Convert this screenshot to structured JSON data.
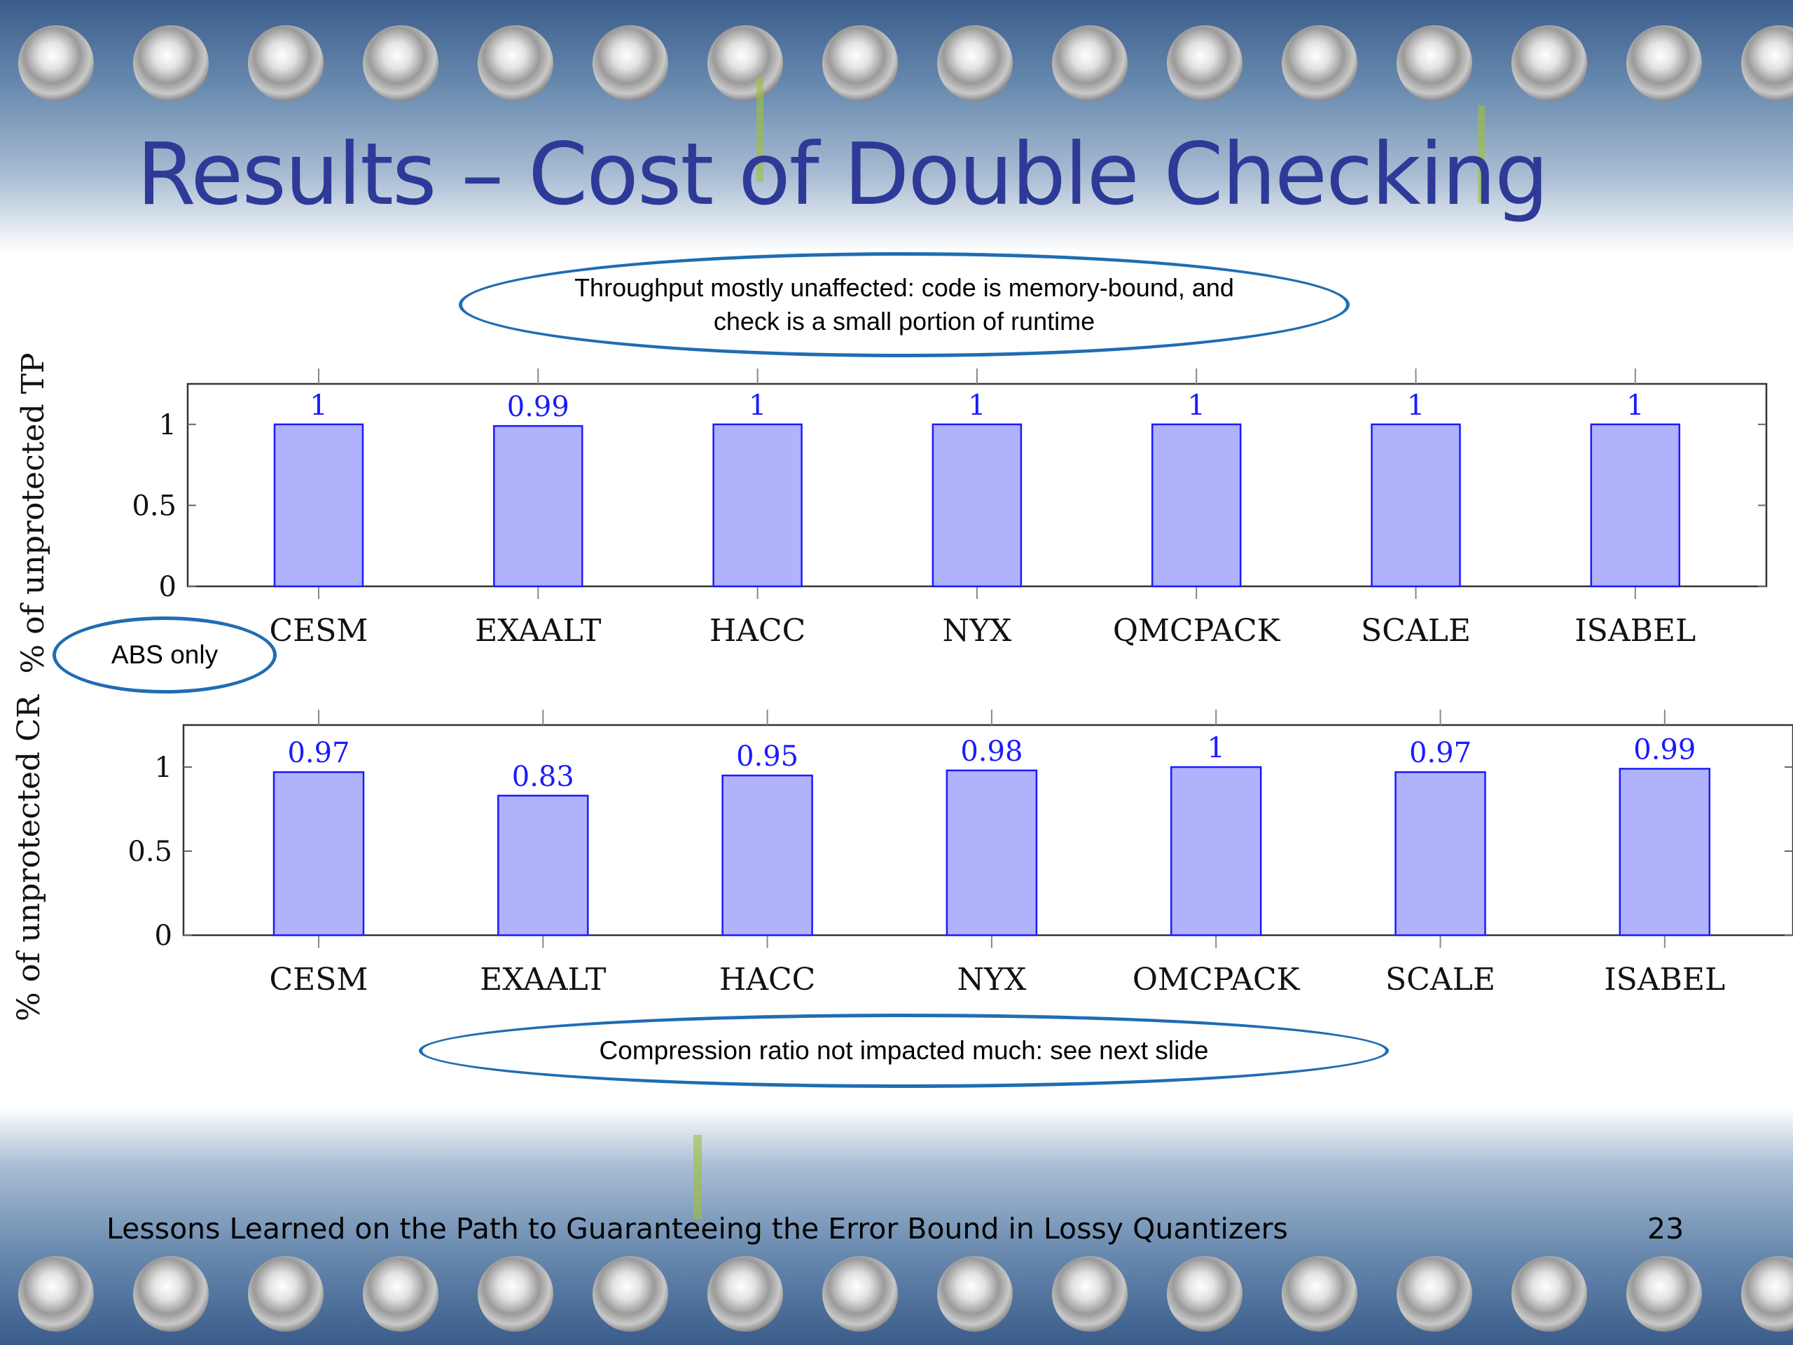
{
  "slide": {
    "title": "Results – Cost of Double Checking",
    "footer": "Lessons Learned on the Path to Guaranteeing the Error Bound in Lossy Quantizers",
    "page_number": "23"
  },
  "callouts": {
    "throughput": "Throughput mostly unaffected: code is memory-bound, and check is a small portion of runtime",
    "abs_only": "ABS only",
    "compression": "Compression ratio not impacted much: see next slide"
  },
  "colors": {
    "title": "#2e3a97",
    "bar_fill": "#b0b2fb",
    "bar_stroke": "#1b1bff",
    "value_label": "#1b1bff",
    "callout_border": "#1f6db3"
  },
  "chart_data": [
    {
      "type": "bar",
      "categories": [
        "CESM",
        "EXAALT",
        "HACC",
        "NYX",
        "QMCPACK",
        "SCALE",
        "ISABEL"
      ],
      "values": [
        1,
        0.99,
        1,
        1,
        1,
        1,
        1
      ],
      "value_labels": [
        "1",
        "0.99",
        "1",
        "1",
        "1",
        "1",
        "1"
      ],
      "ylabel": "% of unprotected TP",
      "yticks": [
        0,
        0.5,
        1
      ],
      "ytick_labels": [
        "0",
        "0.5",
        "1"
      ],
      "ylim": [
        0,
        1.25
      ],
      "grid": false,
      "legend": "none"
    },
    {
      "type": "bar",
      "categories": [
        "CESM",
        "EXAALT",
        "HACC",
        "NYX",
        "OMCPACK",
        "SCALE",
        "ISABEL"
      ],
      "values": [
        0.97,
        0.83,
        0.95,
        0.98,
        1,
        0.97,
        0.99
      ],
      "value_labels": [
        "0.97",
        "0.83",
        "0.95",
        "0.98",
        "1",
        "0.97",
        "0.99"
      ],
      "ylabel": "% of unprotected CR",
      "yticks": [
        0,
        0.5,
        1
      ],
      "ytick_labels": [
        "0",
        "0.5",
        "1"
      ],
      "ylim": [
        0,
        1.25
      ],
      "grid": false,
      "legend": "none"
    }
  ]
}
